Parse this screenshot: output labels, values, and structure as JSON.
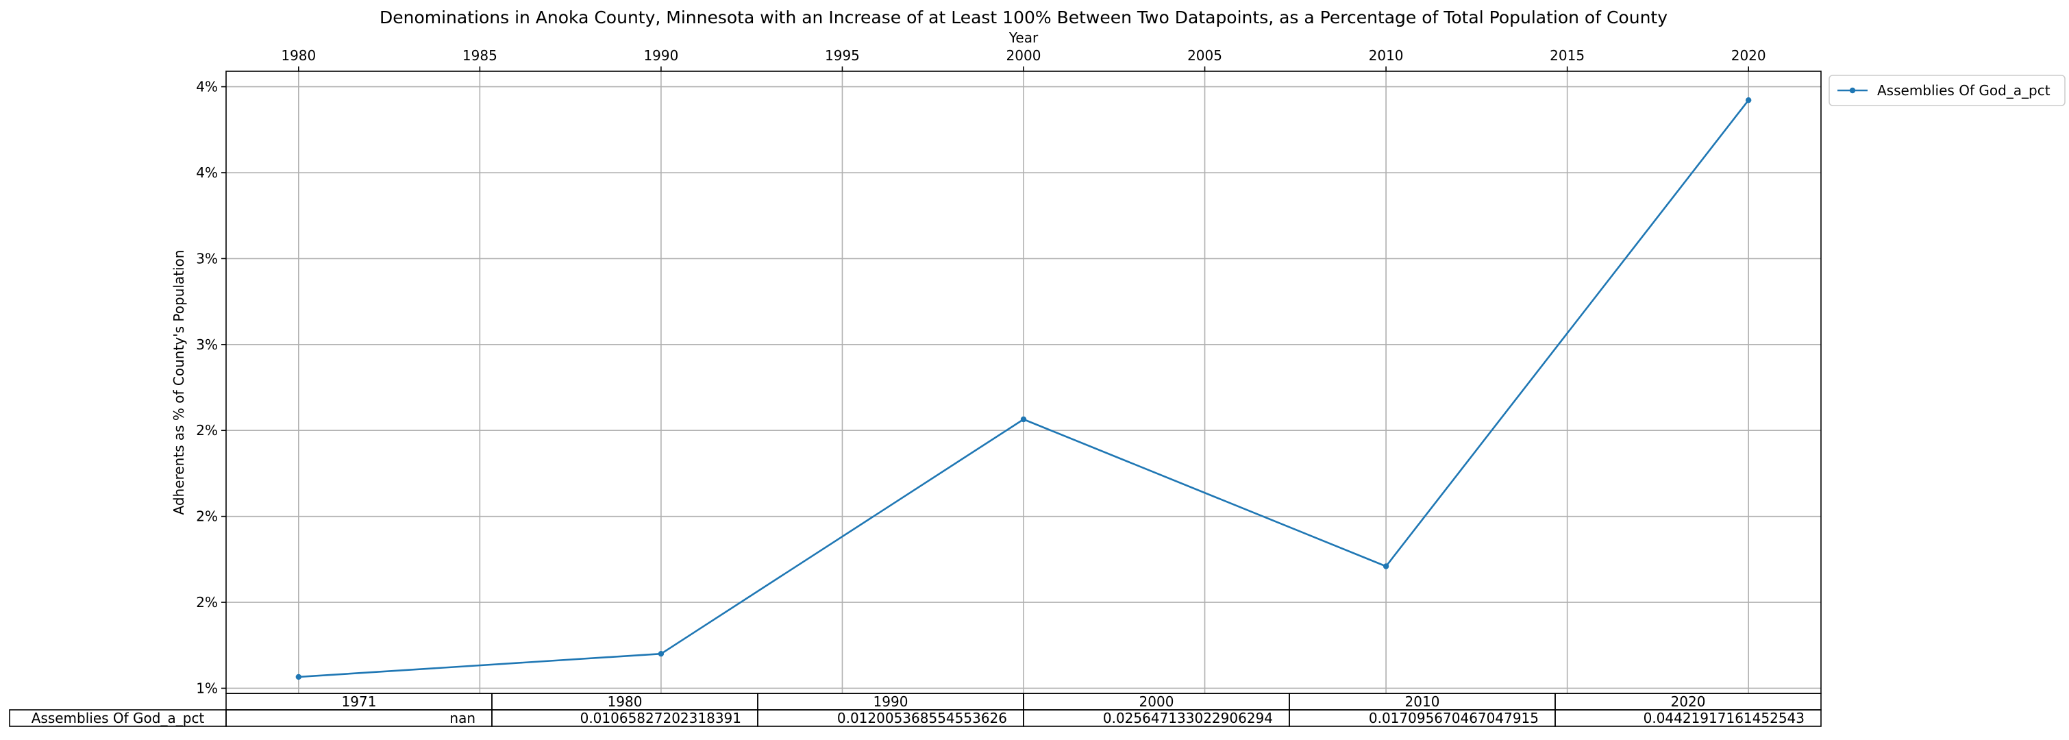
{
  "chart_data": {
    "type": "line",
    "title": "Denominations in Anoka County, Minnesota with an Increase of at Least 100% Between Two Datapoints, as a Percentage of Total Population of County",
    "xlabel": "Year",
    "ylabel": "Adherents as % of County's Population",
    "x_ticks": [
      "1980",
      "1985",
      "1990",
      "1995",
      "2000",
      "2005",
      "2010",
      "2015",
      "2020"
    ],
    "y_ticks": [
      "1%",
      "2%",
      "2%",
      "2%",
      "3%",
      "3%",
      "4%",
      "4%"
    ],
    "grid": true,
    "legend_position": "outside top-right",
    "series": [
      {
        "name": "Assemblies Of God_a_pct",
        "color": "#1f77b4",
        "x": [
          1980,
          1990,
          2000,
          2010,
          2020
        ],
        "y": [
          0.01065827202318391,
          0.012005368554553626,
          0.025647133022906294,
          0.017095670467047915,
          0.04421917161452543
        ]
      }
    ],
    "table": {
      "columns": [
        "1971",
        "1980",
        "1990",
        "2000",
        "2010",
        "2020"
      ],
      "rows": [
        {
          "label": "Assemblies Of God_a_pct",
          "values": [
            "nan",
            "0.01065827202318391",
            "0.012005368554553626",
            "0.025647133022906294",
            "0.017095670467047915",
            "0.04421917161452543"
          ]
        }
      ]
    }
  }
}
